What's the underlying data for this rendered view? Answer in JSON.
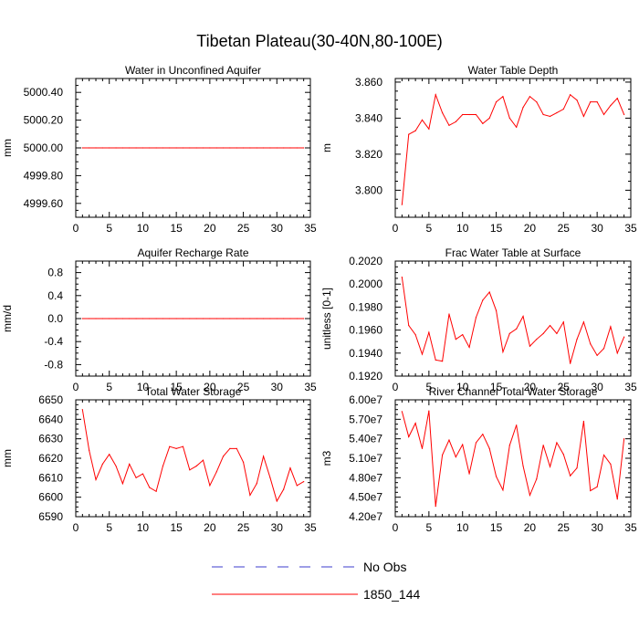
{
  "title": "Tibetan Plateau(30-40N,80-100E)",
  "colors": {
    "model": "#ff0000",
    "obs": "#3c3ccc",
    "axis": "#000000"
  },
  "legend": {
    "entries": [
      {
        "label": "No Obs",
        "style": "dashed",
        "color": "#3c3ccc"
      },
      {
        "label": "1850_144",
        "style": "solid",
        "color": "#ff0000"
      }
    ]
  },
  "chart_data": [
    {
      "type": "line",
      "title": "Water in Unconfined Aquifer",
      "ylabel": "mm",
      "xlim": [
        0,
        35
      ],
      "xticks": [
        0,
        5,
        10,
        15,
        20,
        25,
        30,
        35
      ],
      "ylim": [
        4999.5,
        5000.5
      ],
      "yticks": [
        4999.6,
        4999.8,
        5000.0,
        5000.2,
        5000.4
      ],
      "yticklabels": [
        "4999.60",
        "4999.80",
        "5000.00",
        "5000.20",
        "5000.40"
      ],
      "x": [
        1,
        2,
        3,
        4,
        5,
        6,
        7,
        8,
        9,
        10,
        11,
        12,
        13,
        14,
        15,
        16,
        17,
        18,
        19,
        20,
        21,
        22,
        23,
        24,
        25,
        26,
        27,
        28,
        29,
        30,
        31,
        32,
        33,
        34
      ],
      "series": [
        {
          "name": "1850_144",
          "values": [
            5000,
            5000,
            5000,
            5000,
            5000,
            5000,
            5000,
            5000,
            5000,
            5000,
            5000,
            5000,
            5000,
            5000,
            5000,
            5000,
            5000,
            5000,
            5000,
            5000,
            5000,
            5000,
            5000,
            5000,
            5000,
            5000,
            5000,
            5000,
            5000,
            5000,
            5000,
            5000,
            5000,
            5000
          ]
        }
      ]
    },
    {
      "type": "line",
      "title": "Water Table Depth",
      "ylabel": "m",
      "xlim": [
        0,
        35
      ],
      "xticks": [
        0,
        5,
        10,
        15,
        20,
        25,
        30,
        35
      ],
      "ylim": [
        3.785,
        3.862
      ],
      "yticks": [
        3.8,
        3.82,
        3.84,
        3.86
      ],
      "yticklabels": [
        "3.800",
        "3.820",
        "3.840",
        "3.860"
      ],
      "x": [
        1,
        2,
        3,
        4,
        5,
        6,
        7,
        8,
        9,
        10,
        11,
        12,
        13,
        14,
        15,
        16,
        17,
        18,
        19,
        20,
        21,
        22,
        23,
        24,
        25,
        26,
        27,
        28,
        29,
        30,
        31,
        32,
        33,
        34
      ],
      "series": [
        {
          "name": "1850_144",
          "values": [
            3.792,
            3.831,
            3.833,
            3.839,
            3.834,
            3.853,
            3.843,
            3.836,
            3.838,
            3.842,
            3.842,
            3.842,
            3.837,
            3.84,
            3.849,
            3.852,
            3.84,
            3.835,
            3.846,
            3.852,
            3.849,
            3.842,
            3.841,
            3.843,
            3.845,
            3.853,
            3.85,
            3.841,
            3.849,
            3.849,
            3.842,
            3.847,
            3.851,
            3.842
          ]
        }
      ]
    },
    {
      "type": "line",
      "title": "Aquifer Recharge Rate",
      "ylabel": "mm/d",
      "xlim": [
        0,
        35
      ],
      "xticks": [
        0,
        5,
        10,
        15,
        20,
        25,
        30,
        35
      ],
      "ylim": [
        -1.0,
        1.0
      ],
      "yticks": [
        -0.8,
        -0.4,
        0.0,
        0.4,
        0.8
      ],
      "yticklabels": [
        "-0.8",
        "-0.4",
        "0.0",
        "0.4",
        "0.8"
      ],
      "x": [
        1,
        2,
        3,
        4,
        5,
        6,
        7,
        8,
        9,
        10,
        11,
        12,
        13,
        14,
        15,
        16,
        17,
        18,
        19,
        20,
        21,
        22,
        23,
        24,
        25,
        26,
        27,
        28,
        29,
        30,
        31,
        32,
        33,
        34
      ],
      "series": [
        {
          "name": "1850_144",
          "values": [
            0,
            0,
            0,
            0,
            0,
            0,
            0,
            0,
            0,
            0,
            0,
            0,
            0,
            0,
            0,
            0,
            0,
            0,
            0,
            0,
            0,
            0,
            0,
            0,
            0,
            0,
            0,
            0,
            0,
            0,
            0,
            0,
            0,
            0
          ]
        }
      ]
    },
    {
      "type": "line",
      "title": "Frac Water Table at Surface",
      "ylabel": "unitless [0-1]",
      "xlim": [
        0,
        35
      ],
      "xticks": [
        0,
        5,
        10,
        15,
        20,
        25,
        30,
        35
      ],
      "ylim": [
        0.192,
        0.202
      ],
      "yticks": [
        0.192,
        0.194,
        0.196,
        0.198,
        0.2,
        0.202
      ],
      "yticklabels": [
        "0.1920",
        "0.1940",
        "0.1960",
        "0.1980",
        "0.2000",
        "0.2020"
      ],
      "x": [
        1,
        2,
        3,
        4,
        5,
        6,
        7,
        8,
        9,
        10,
        11,
        12,
        13,
        14,
        15,
        16,
        17,
        18,
        19,
        20,
        21,
        22,
        23,
        24,
        25,
        26,
        27,
        28,
        29,
        30,
        31,
        32,
        33,
        34
      ],
      "series": [
        {
          "name": "1850_144",
          "values": [
            0.2006,
            0.1964,
            0.1956,
            0.1939,
            0.1958,
            0.1934,
            0.1933,
            0.1974,
            0.1952,
            0.1956,
            0.1945,
            0.1971,
            0.1986,
            0.1993,
            0.1977,
            0.1941,
            0.1957,
            0.1961,
            0.1972,
            0.1946,
            0.1952,
            0.1957,
            0.1964,
            0.1957,
            0.1967,
            0.1931,
            0.1952,
            0.1967,
            0.1948,
            0.1938,
            0.1944,
            0.1963,
            0.194,
            0.1954
          ]
        }
      ]
    },
    {
      "type": "line",
      "title": "Total Water Storage",
      "ylabel": "mm",
      "xlim": [
        0,
        35
      ],
      "xticks": [
        0,
        5,
        10,
        15,
        20,
        25,
        30,
        35
      ],
      "ylim": [
        6590,
        6650
      ],
      "yticks": [
        6590,
        6600,
        6610,
        6620,
        6630,
        6640,
        6650
      ],
      "yticklabels": [
        "6590",
        "6600",
        "6610",
        "6620",
        "6630",
        "6640",
        "6650"
      ],
      "x": [
        1,
        2,
        3,
        4,
        5,
        6,
        7,
        8,
        9,
        10,
        11,
        12,
        13,
        14,
        15,
        16,
        17,
        18,
        19,
        20,
        21,
        22,
        23,
        24,
        25,
        26,
        27,
        28,
        29,
        30,
        31,
        32,
        33,
        34
      ],
      "series": [
        {
          "name": "1850_144",
          "values": [
            6645,
            6624,
            6609,
            6617,
            6622,
            6616,
            6607,
            6617,
            6610,
            6612,
            6605,
            6603,
            6616,
            6626,
            6625,
            6626,
            6614,
            6616,
            6619,
            6606,
            6613,
            6621,
            6625,
            6625,
            6618,
            6601,
            6607,
            6621,
            6610,
            6598,
            6604,
            6615,
            6606,
            6608
          ]
        }
      ]
    },
    {
      "type": "line",
      "title": "River Channel Total Water Storage",
      "ylabel": "m3",
      "xlim": [
        0,
        35
      ],
      "xticks": [
        0,
        5,
        10,
        15,
        20,
        25,
        30,
        35
      ],
      "ylim": [
        42000000,
        60000000
      ],
      "yticks": [
        42000000,
        45000000,
        48000000,
        51000000,
        54000000,
        57000000,
        60000000
      ],
      "yticklabels": [
        "4.20e7",
        "4.50e7",
        "4.80e7",
        "5.10e7",
        "5.40e7",
        "5.70e7",
        "6.00e7"
      ],
      "x": [
        1,
        2,
        3,
        4,
        5,
        6,
        7,
        8,
        9,
        10,
        11,
        12,
        13,
        14,
        15,
        16,
        17,
        18,
        19,
        20,
        21,
        22,
        23,
        24,
        25,
        26,
        27,
        28,
        29,
        30,
        31,
        32,
        33,
        34
      ],
      "series": [
        {
          "name": "1850_144",
          "values": [
            58200000,
            54300000,
            56400000,
            52500000,
            58300000,
            43600000,
            51500000,
            53800000,
            51200000,
            53100000,
            48600000,
            53400000,
            54700000,
            52500000,
            48200000,
            46100000,
            53000000,
            56100000,
            49800000,
            45300000,
            47800000,
            53000000,
            49700000,
            53400000,
            51600000,
            48300000,
            49500000,
            56700000,
            46000000,
            46600000,
            51500000,
            50100000,
            44700000,
            54000000
          ]
        }
      ]
    }
  ]
}
